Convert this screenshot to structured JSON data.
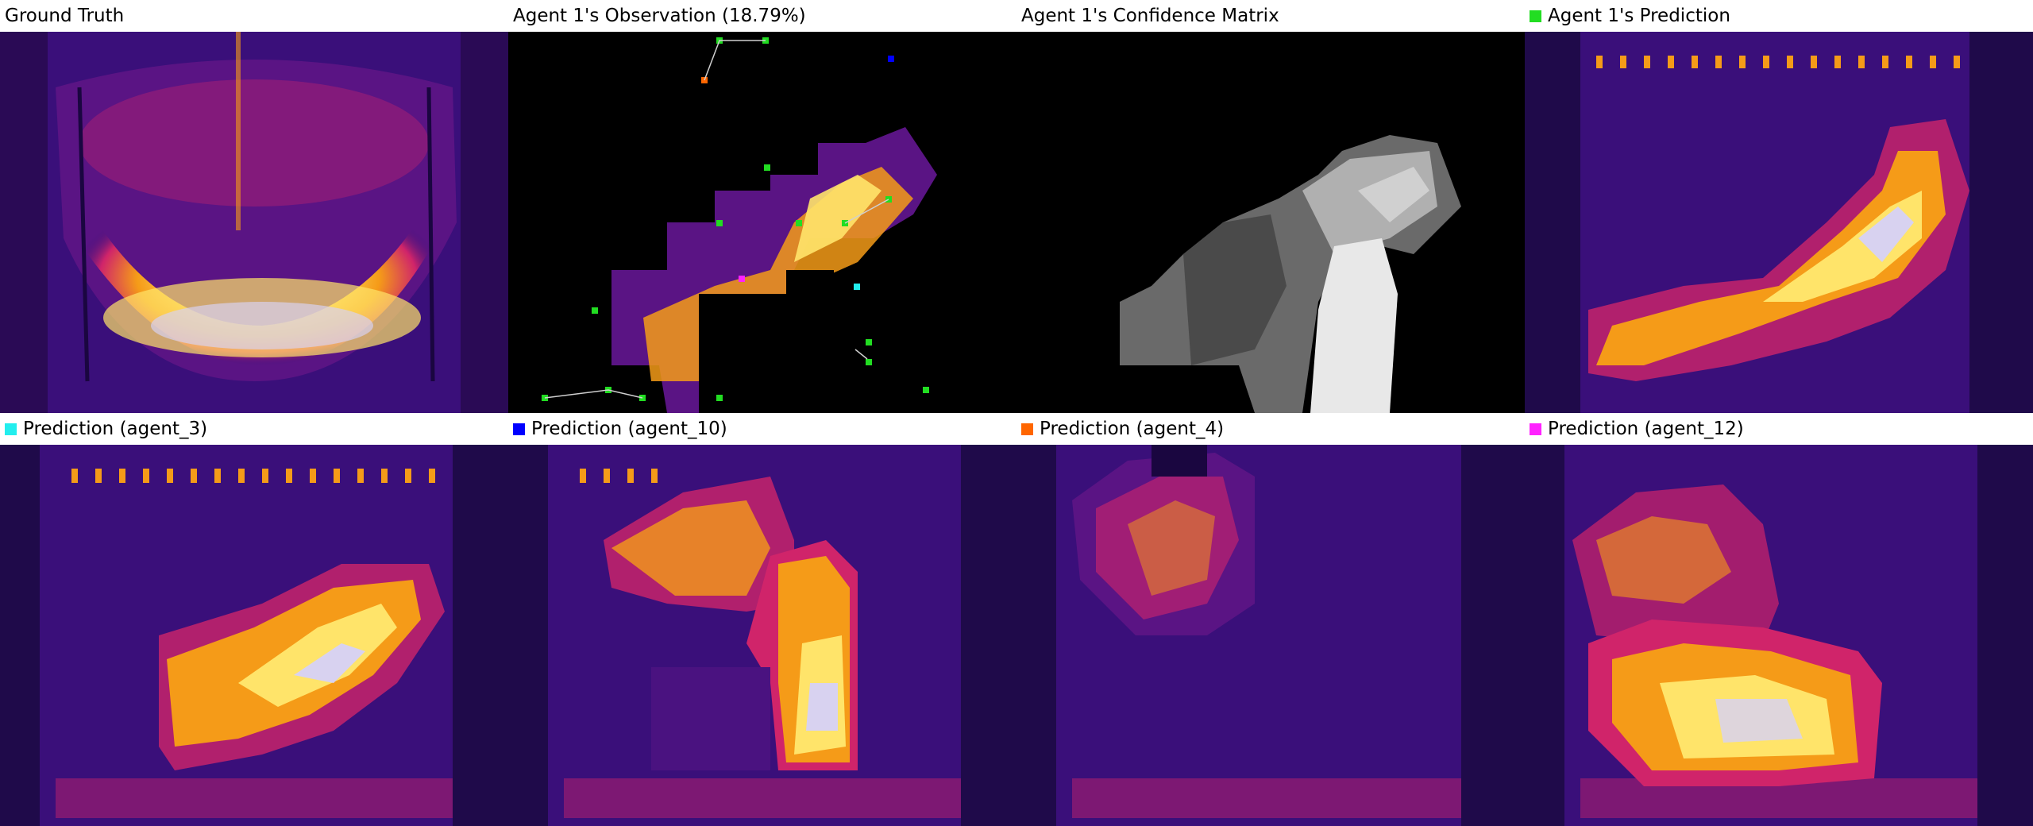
{
  "panels": [
    {
      "title": "Ground Truth",
      "swatch": null
    },
    {
      "title": "Agent 1's Observation (18.79%)",
      "swatch": null
    },
    {
      "title": "Agent 1's Confidence Matrix",
      "swatch": null
    },
    {
      "title": "Agent 1's Prediction",
      "swatch": "#22dd22"
    },
    {
      "title": "Prediction (agent_3)",
      "swatch": "#22eeee"
    },
    {
      "title": "Prediction (agent_10)",
      "swatch": "#0000ff"
    },
    {
      "title": "Prediction (agent_4)",
      "swatch": "#ff6600"
    },
    {
      "title": "Prediction (agent_12)",
      "swatch": "#ff22ff"
    }
  ],
  "colors": {
    "heat_background": "#3a0f7a",
    "heat_mid": "#d0246a",
    "heat_warm": "#f59b18",
    "heat_hot": "#ffe46a",
    "heat_peak": "#d8d2f0",
    "agent_green": "#22dd22",
    "agent_cyan": "#22eeee",
    "agent_blue": "#0000ff",
    "agent_orange": "#ff6600",
    "agent_magenta": "#ff22ff"
  }
}
